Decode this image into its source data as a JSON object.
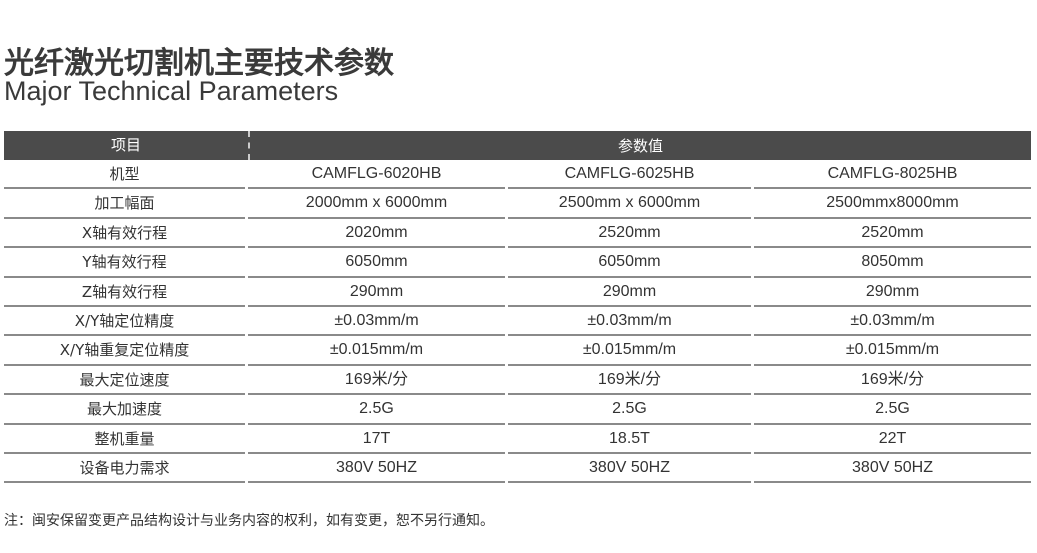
{
  "title_cn": "光纤激光切割机主要技术参数",
  "title_en": "Major Technical Parameters",
  "table": {
    "headers": [
      "项目",
      "参数值"
    ],
    "rows": [
      [
        "机型",
        "CAMFLG-6020HB",
        "CAMFLG-6025HB",
        "CAMFLG-8025HB"
      ],
      [
        "加工幅面",
        "2000mm x 6000mm",
        "2500mm x 6000mm",
        "2500mmx8000mm"
      ],
      [
        "X轴有效行程",
        "2020mm",
        "2520mm",
        "2520mm"
      ],
      [
        "Y轴有效行程",
        "6050mm",
        "6050mm",
        "8050mm"
      ],
      [
        "Z轴有效行程",
        "290mm",
        "290mm",
        "290mm"
      ],
      [
        "X/Y轴定位精度",
        "±0.03mm/m",
        "±0.03mm/m",
        "±0.03mm/m"
      ],
      [
        "X/Y轴重复定位精度",
        "±0.015mm/m",
        "±0.015mm/m",
        "±0.015mm/m"
      ],
      [
        "最大定位速度",
        "169米/分",
        "169米/分",
        "169米/分"
      ],
      [
        "最大加速度",
        "2.5G",
        "2.5G",
        "2.5G"
      ],
      [
        "整机重量",
        "17T",
        "18.5T",
        "22T"
      ],
      [
        "设备电力需求",
        "380V 50HZ",
        "380V 50HZ",
        "380V 50HZ"
      ]
    ]
  },
  "note": "注：闽安保留变更产品结构设计与业务内容的权利，如有变更，恕不另行通知。"
}
